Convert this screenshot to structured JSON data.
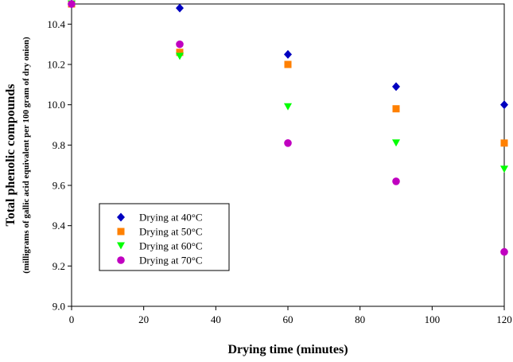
{
  "chart_data": {
    "type": "scatter",
    "xlabel": "Drying time (minutes)",
    "ylabel": "Total phenolic compounds",
    "ylabel_sub": "(milligrams of gallic acid equivalent per 100 gram of dry onion)",
    "xlim": [
      0,
      120
    ],
    "ylim": [
      9.0,
      10.5
    ],
    "xticks": [
      "0",
      "20",
      "40",
      "60",
      "80",
      "100",
      "120"
    ],
    "yticks": [
      "9.0",
      "9.2",
      "9.4",
      "9.6",
      "9.8",
      "10.0",
      "10.2",
      "10.4"
    ],
    "grid": false,
    "legend_position": "bottom-left",
    "series": [
      {
        "name": "Drying at 40°C",
        "marker": "diamond",
        "color": "#0000c0",
        "x": [
          0,
          30,
          60,
          90,
          120
        ],
        "y": [
          10.5,
          10.48,
          10.25,
          10.09,
          10.0
        ]
      },
      {
        "name": "Drying at 50°C",
        "marker": "square",
        "color": "#ff8000",
        "x": [
          0,
          30,
          60,
          90,
          120
        ],
        "y": [
          10.5,
          10.26,
          10.2,
          9.98,
          9.81
        ]
      },
      {
        "name": "Drying at 60°C",
        "marker": "triangle-down",
        "color": "#00ff00",
        "x": [
          0,
          30,
          60,
          90,
          120
        ],
        "y": [
          10.5,
          10.24,
          9.99,
          9.81,
          9.68
        ]
      },
      {
        "name": "Drying at 70°C",
        "marker": "circle",
        "color": "#c000c0",
        "x": [
          0,
          30,
          60,
          90,
          120
        ],
        "y": [
          10.5,
          10.3,
          9.81,
          9.62,
          9.27
        ]
      }
    ]
  }
}
